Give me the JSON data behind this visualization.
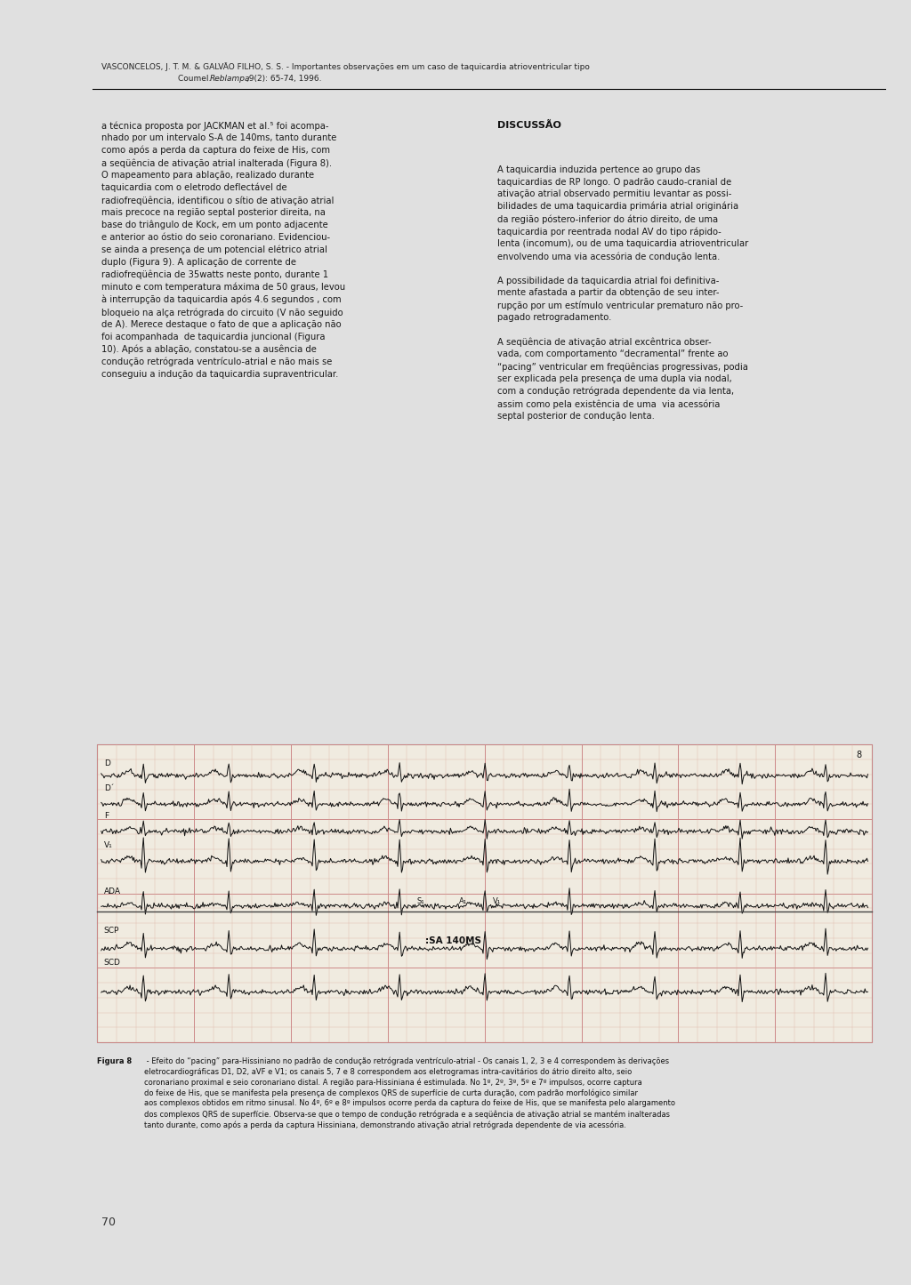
{
  "page_bg": "#e0e0e0",
  "content_bg": "#ffffff",
  "left_margin_bg": "#b0b0b0",
  "header_text_line1": "VASCONCELOS, J. T. M. & GALVÃO FILHO, S. S. - Importantes observações em um caso de taquicardia atrioventricular tipo",
  "header_text_line2_pre": "Coumel.  ",
  "header_text_line2_italic": "Reblampa",
  "header_text_line2_post": ",9(2): 65-74, 1996.",
  "left_col_text": "a técnica proposta por JACKMAN et al.⁵ foi acompa-\nnhado por um intervalo S-A de 140ms, tanto durante\ncomo após a perda da captura do feixe de His, com\na seqüência de ativação atrial inalterada (Figura 8).\nO mapeamento para ablação, realizado durante\ntaquicardia com o eletrodo deflectável de\nradiofreqüência, identificou o sítio de ativação atrial\nmais precoce na região septal posterior direita, na\nbase do triângulo de Kock, em um ponto adjacente\ne anterior ao óstio do seio coronariano. Evidenciou-\nse ainda a presença de um potencial elétrico atrial\nduplo (Figura 9). A aplicação de corrente de\nradiofreqüência de 35watts neste ponto, durante 1\nminuto e com temperatura máxima de 50 graus, levou\nà interrupção da taquicardia após 4.6 segundos , com\nbloqueio na alça retrógrada do circuito (V não seguido\nde A). Merece destaque o fato de que a aplicação não\nfoi acompanhada  de taquicardia juncional (Figura\n10). Após a ablação, constatou-se a ausência de\ncondução retrógrada ventrículo-atrial e não mais se\nconseguiu a indução da taquicardia supraventricular.",
  "right_col_title": "DISCUSSÃO",
  "right_col_text": "A taquicardia induzida pertence ao grupo das\ntaquicardias de RP longo. O padrão caudo-cranial de\nativação atrial observado permitiu levantar as possi-\nbilidades de uma taquicardia primária atrial originária\nda região póstero-inferior do átrio direito, de uma\ntaquicardia por reentrada nodal AV do tipo rápido-\nlenta (incomum), ou de uma taquicardia atrioventricular\nenvolvendo uma via acessória de condução lenta.\n\nA possibilidade da taquicardia atrial foi definitiva-\nmente afastada a partir da obtenção de seu inter-\nrupção por um estímulo ventricular prematuro não pro-\npagado retrogradamento.\n\nA seqüência de ativação atrial excêntrica obser-\nvada, com comportamento “decramental” frente ao\n“pacing” ventricular em freqüências progressivas, podia\nser explicada pela presença de uma dupla via nodal,\ncom a condução retrógrada dependente da via lenta,\nassim como pela existência de uma  via acessória\nseptal posterior de condução lenta.",
  "figure_caption_bold": "Figura 8",
  "figure_caption_rest": " - Efeito do “pacing” para-Hissiniano no padrão de condução retrógrada ventrículo-atrial - Os canais 1, 2, 3 e 4 correspondem às derivações\neletrocardiográficas D1, D2, aVF e V1; os canais 5, 7 e 8 correspondem aos eletrogramas intra-cavitários do átrio direito alto, seio\ncoronariano proximal e seio coronariano distal. A região para-Hissiniana é estimulada. No 1º, 2º, 3º, 5º e 7º impulsos, ocorre captura\ndo feixe de His, que se manifesta pela presença de complexos QRS de superfície de curta duração, com padrão morfológico similar\naos complexos obtidos em ritmo sinusal. No 4º, 6º e 8º impulsos ocorre perda da captura do feixe de His, que se manifesta pelo alargamento\ndos complexos QRS de superfície. Observa-se que o tempo de condução retrógrada e a seqüência de ativação atrial se mantém inalteradas\ntanto durante, como após a perda da captura Hissiniana, demonstrando ativação atrial retrógrada dependente de via acessória.",
  "page_number": "70",
  "ecg_labels_top": [
    "D",
    "D´",
    "F",
    "V₁",
    "ADA"
  ],
  "ecg_labels_bottom": [
    "SCP",
    "SCD"
  ],
  "ecg_annotation": ":SA 140MS",
  "ecg_number": "8",
  "ecg_bg": "#f0ebe0",
  "ecg_grid_major": "#cc8888",
  "ecg_grid_minor": "#ddb0a0",
  "ecg_line_color": "#111111"
}
